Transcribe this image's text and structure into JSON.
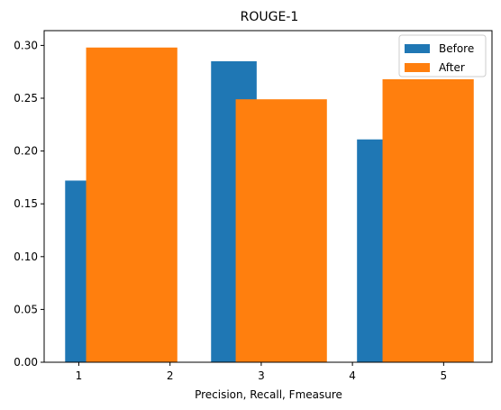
{
  "chart_data": {
    "type": "bar",
    "title": "ROUGE-1",
    "xlabel": "Precision, Recall, Fmeasure",
    "ylabel": "",
    "xlim": [
      0.62,
      5.53
    ],
    "ylim": [
      0,
      0.314
    ],
    "x_ticks": [
      1,
      2,
      3,
      4,
      5
    ],
    "y_ticks": [
      0.0,
      0.05,
      0.1,
      0.15,
      0.2,
      0.25,
      0.3
    ],
    "y_tick_labels": [
      "0.00",
      "0.05",
      "0.10",
      "0.15",
      "0.20",
      "0.25",
      "0.30"
    ],
    "legend_position": "top-right",
    "series": [
      {
        "name": "Before",
        "color": "#1f77b4",
        "bars": [
          {
            "x_start": 0.85,
            "x_end": 1.35,
            "value": 0.172
          },
          {
            "x_start": 2.45,
            "x_end": 2.95,
            "value": 0.285
          },
          {
            "x_start": 4.05,
            "x_end": 4.55,
            "value": 0.211
          }
        ]
      },
      {
        "name": "After",
        "color": "#ff7f0e",
        "bars": [
          {
            "x_start": 1.08,
            "x_end": 2.08,
            "value": 0.298
          },
          {
            "x_start": 2.72,
            "x_end": 3.72,
            "value": 0.249
          },
          {
            "x_start": 4.33,
            "x_end": 5.33,
            "value": 0.268
          }
        ]
      }
    ]
  }
}
